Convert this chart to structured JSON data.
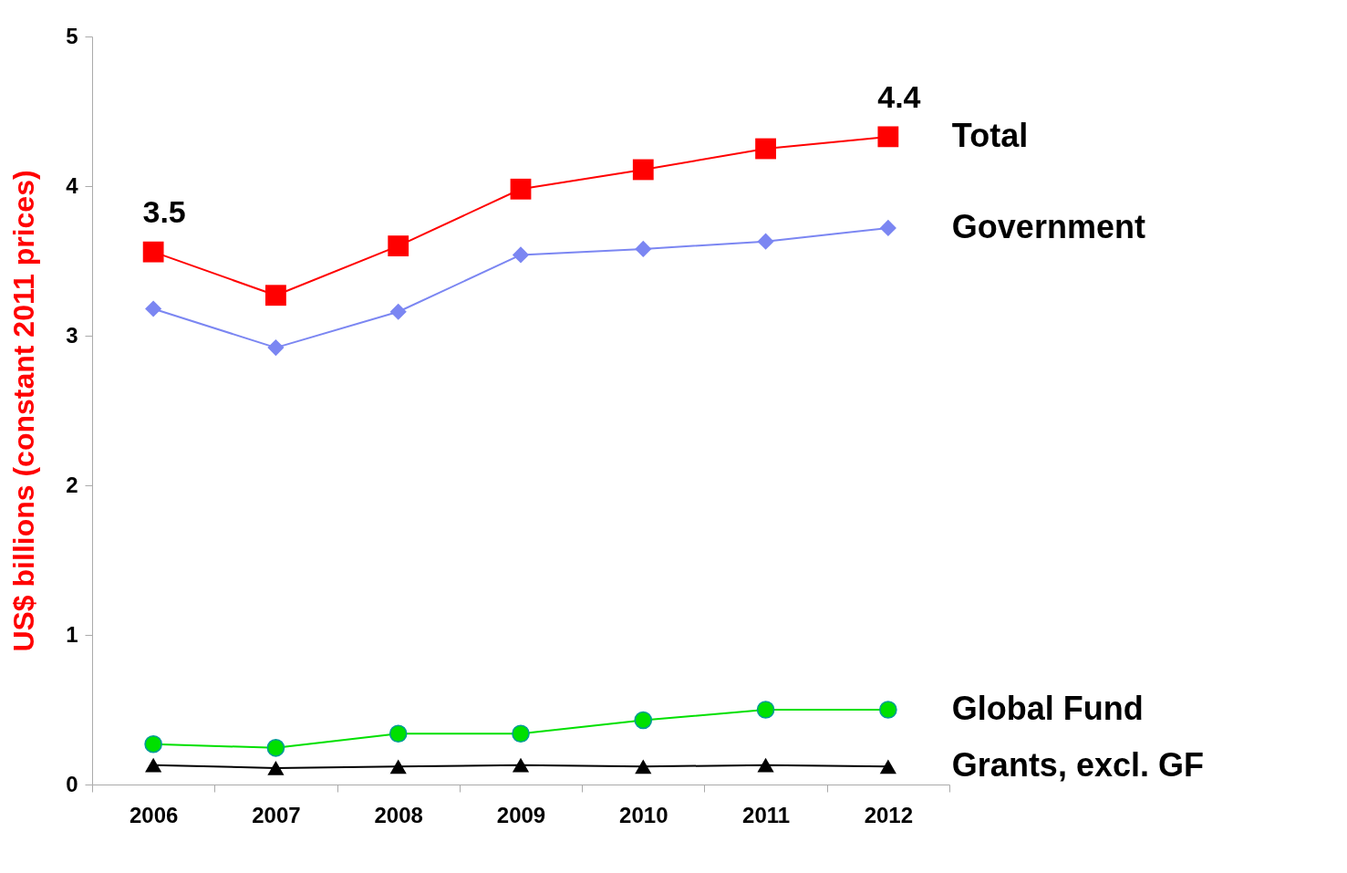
{
  "chart_data": {
    "type": "line",
    "ylabel": "US$ billions (constant 2011 prices)",
    "categories": [
      "2006",
      "2007",
      "2008",
      "2009",
      "2010",
      "2011",
      "2012"
    ],
    "ylim": [
      0,
      5
    ],
    "yticks": [
      0,
      1,
      2,
      3,
      4,
      5
    ],
    "grid": false,
    "legend": false,
    "series": [
      {
        "name": "Total",
        "color": "#ff0000",
        "marker": "square",
        "values": [
          3.56,
          3.27,
          3.6,
          3.98,
          4.11,
          4.25,
          4.33
        ]
      },
      {
        "name": "Government",
        "color": "#7b86f2",
        "marker": "diamond",
        "values": [
          3.18,
          2.92,
          3.16,
          3.54,
          3.58,
          3.63,
          3.72
        ]
      },
      {
        "name": "Global Fund",
        "color": "#00e000",
        "marker": "circle",
        "values": [
          0.27,
          0.245,
          0.34,
          0.34,
          0.43,
          0.5,
          0.5
        ]
      },
      {
        "name": "Grants, excl. GF",
        "color": "#000000",
        "marker": "triangle",
        "values": [
          0.13,
          0.11,
          0.12,
          0.13,
          0.12,
          0.13,
          0.12
        ]
      }
    ],
    "annotations": [
      {
        "text": "3.5",
        "x": "2006",
        "y": 3.56
      },
      {
        "text": "4.4",
        "x": "2012",
        "y": 4.33
      }
    ]
  }
}
